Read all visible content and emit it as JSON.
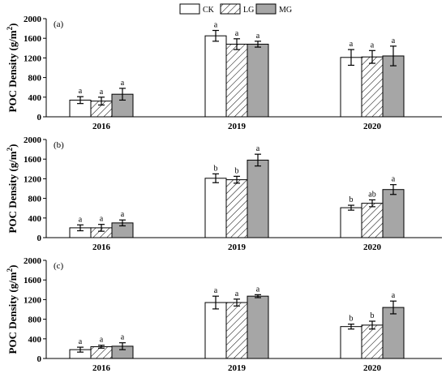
{
  "legend": [
    {
      "label": "CK",
      "fill": "#ffffff",
      "pattern": "none"
    },
    {
      "label": "LG",
      "fill": "#ffffff",
      "pattern": "hatch"
    },
    {
      "label": "MG",
      "fill": "#a6a6a6",
      "pattern": "none"
    }
  ],
  "chart_data": [
    {
      "type": "bar",
      "panel_label": "(a)",
      "ylabel": "POC Density (g/m2)",
      "ylim": [
        0,
        2000
      ],
      "yticks": [
        0,
        400,
        800,
        1200,
        1600,
        2000
      ],
      "categories": [
        "2016",
        "2019",
        "2020"
      ],
      "series": [
        {
          "name": "CK",
          "values": [
            340,
            1650,
            1210
          ],
          "errors": [
            70,
            110,
            160
          ],
          "letters": [
            "a",
            "a",
            "a"
          ]
        },
        {
          "name": "LG",
          "values": [
            320,
            1480,
            1220
          ],
          "errors": [
            80,
            110,
            130
          ],
          "letters": [
            "a",
            "a",
            "a"
          ]
        },
        {
          "name": "MG",
          "values": [
            460,
            1480,
            1240
          ],
          "errors": [
            120,
            60,
            200
          ],
          "letters": [
            "a",
            "a",
            "a"
          ]
        }
      ]
    },
    {
      "type": "bar",
      "panel_label": "(b)",
      "ylabel": "POC Density (g/m2)",
      "ylim": [
        0,
        2000
      ],
      "yticks": [
        0,
        400,
        800,
        1200,
        1600,
        2000
      ],
      "categories": [
        "2016",
        "2019",
        "2020"
      ],
      "series": [
        {
          "name": "CK",
          "values": [
            200,
            1210,
            610
          ],
          "errors": [
            60,
            90,
            50
          ],
          "letters": [
            "a",
            "b",
            "b"
          ]
        },
        {
          "name": "LG",
          "values": [
            200,
            1180,
            700
          ],
          "errors": [
            70,
            70,
            70
          ],
          "letters": [
            "a",
            "b",
            "ab"
          ]
        },
        {
          "name": "MG",
          "values": [
            300,
            1580,
            980
          ],
          "errors": [
            60,
            120,
            100
          ],
          "letters": [
            "a",
            "a",
            "a"
          ]
        }
      ]
    },
    {
      "type": "bar",
      "panel_label": "(c)",
      "ylabel": "POC Density (g/m2)",
      "ylim": [
        0,
        2000
      ],
      "yticks": [
        0,
        400,
        800,
        1200,
        1600,
        2000
      ],
      "categories": [
        "2016",
        "2019",
        "2020"
      ],
      "series": [
        {
          "name": "CK",
          "values": [
            180,
            1140,
            650
          ],
          "errors": [
            50,
            130,
            50
          ],
          "letters": [
            "a",
            "a",
            "b"
          ]
        },
        {
          "name": "LG",
          "values": [
            240,
            1140,
            680
          ],
          "errors": [
            30,
            70,
            80
          ],
          "letters": [
            "a",
            "a",
            "b"
          ]
        },
        {
          "name": "MG",
          "values": [
            250,
            1270,
            1040
          ],
          "errors": [
            70,
            30,
            130
          ],
          "letters": [
            "a",
            "a",
            "a"
          ]
        }
      ]
    }
  ]
}
